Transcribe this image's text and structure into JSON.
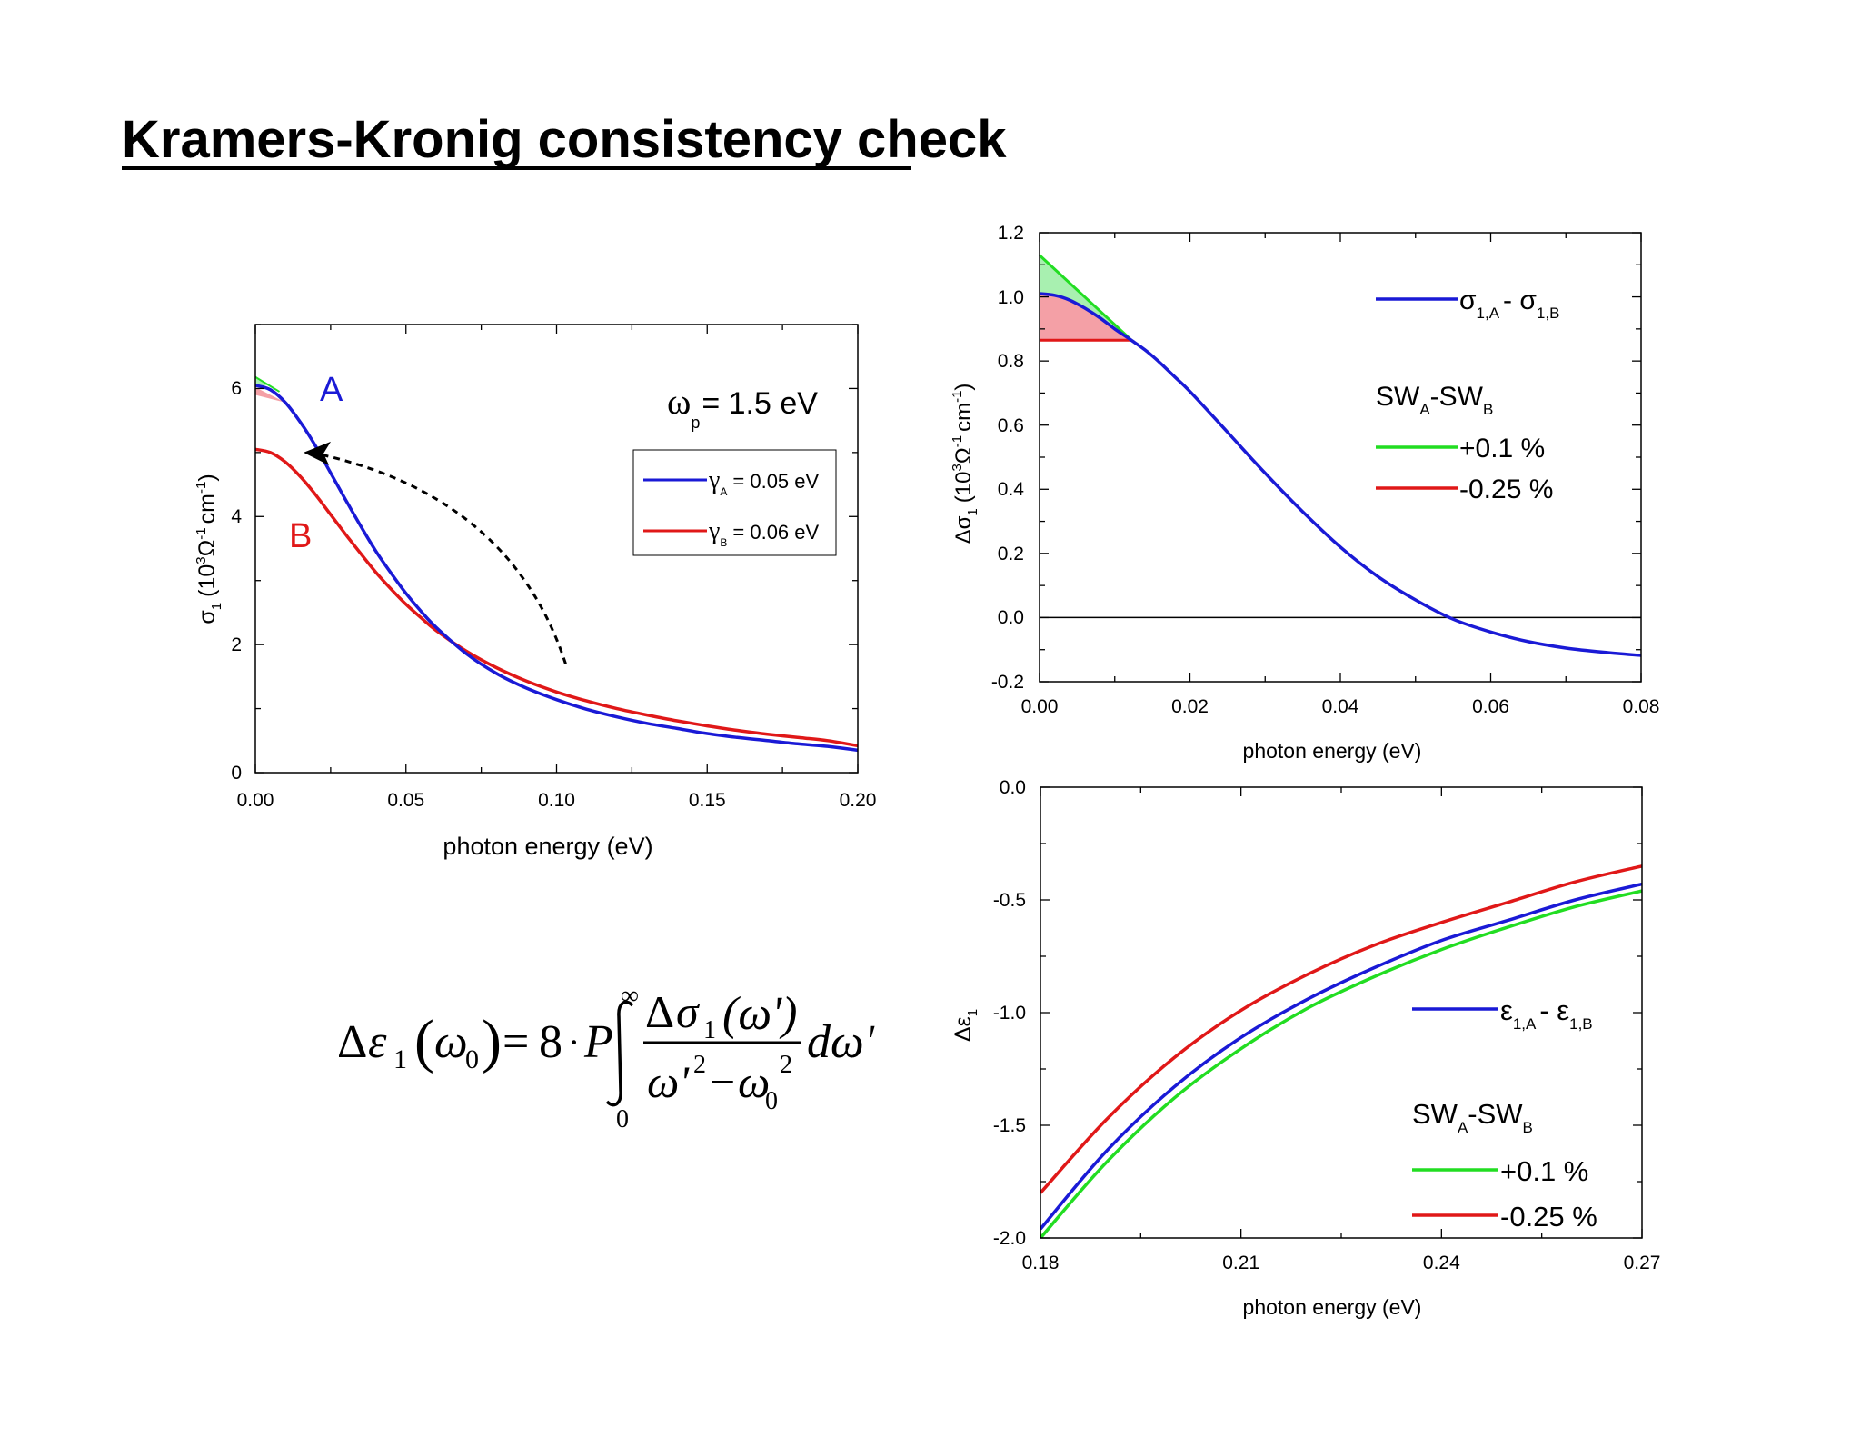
{
  "page": {
    "title": "Kramers-Kronig consistency check"
  },
  "formula": {
    "delta": "Δ",
    "eps": "ε",
    "sub1": "1",
    "omega0": "ω",
    "sub0": "0",
    "equals": "=",
    "eight": "8",
    "dot": "·",
    "P": "P",
    "inf": "∞",
    "lower": "0",
    "num_delta": "Δ",
    "num_sigma": "σ",
    "num_sub": "1",
    "num_arg": "(ω')",
    "den_a": "ω'",
    "den_sup": "2",
    "den_minus": "−",
    "den_b": "ω",
    "den_b_sub": "0",
    "den_b_sup": "2",
    "tail": "dω'"
  },
  "colors": {
    "blue": "#1a1ad6",
    "red": "#e01818",
    "green": "#22dd22",
    "pink": "#f4a0a6",
    "palegreen": "#a8f0b0"
  },
  "chart_data": [
    {
      "type": "line",
      "xlabel": "photon energy (eV)",
      "ylabel": {
        "main": "σ",
        "sub": "1",
        "rest1": "(10",
        "sup3": "3",
        "ohm": "Ω",
        "supm1": "-1",
        "cm": "cm",
        "supm1b": "-1",
        "close": ")"
      },
      "xlim": [
        0,
        0.2
      ],
      "ylim": [
        0,
        7
      ],
      "xticks": [
        "0.00",
        "0.05",
        "0.10",
        "0.15",
        "0.20"
      ],
      "yticks": [
        "0",
        "2",
        "4",
        "6"
      ],
      "labels": {
        "A": "A",
        "B": "B"
      },
      "annotation": {
        "omega": "ω",
        "sub": "p",
        "text": "= 1.5 eV"
      },
      "legend": {
        "position": "top-right",
        "entries": [
          {
            "sym": "γ",
            "sub": "A",
            "text": "= 0.05 eV",
            "color": "blue"
          },
          {
            "sym": "γ",
            "sub": "B",
            "text": "= 0.06 eV",
            "color": "red"
          }
        ]
      },
      "series": [
        {
          "name": "γA = 0.05 eV",
          "color": "blue",
          "x": [
            0,
            0.005,
            0.01,
            0.015,
            0.02,
            0.025,
            0.03,
            0.035,
            0.04,
            0.045,
            0.05,
            0.055,
            0.06,
            0.07,
            0.08,
            0.09,
            0.1,
            0.11,
            0.12,
            0.13,
            0.14,
            0.15,
            0.16,
            0.17,
            0.18,
            0.19,
            0.2
          ],
          "y": [
            6.05,
            5.98,
            5.78,
            5.47,
            5.1,
            4.68,
            4.26,
            3.85,
            3.46,
            3.12,
            2.8,
            2.52,
            2.27,
            1.86,
            1.55,
            1.32,
            1.14,
            0.99,
            0.87,
            0.77,
            0.69,
            0.61,
            0.55,
            0.5,
            0.45,
            0.41,
            0.35
          ]
        },
        {
          "name": "γB = 0.06 eV",
          "color": "red",
          "x": [
            0,
            0.005,
            0.01,
            0.015,
            0.02,
            0.025,
            0.03,
            0.035,
            0.04,
            0.045,
            0.05,
            0.055,
            0.06,
            0.07,
            0.08,
            0.09,
            0.1,
            0.11,
            0.12,
            0.13,
            0.14,
            0.15,
            0.16,
            0.17,
            0.18,
            0.19,
            0.2
          ],
          "y": [
            5.05,
            5.0,
            4.85,
            4.62,
            4.34,
            4.03,
            3.72,
            3.42,
            3.13,
            2.87,
            2.63,
            2.42,
            2.22,
            1.9,
            1.64,
            1.43,
            1.26,
            1.12,
            1.0,
            0.9,
            0.81,
            0.73,
            0.66,
            0.6,
            0.55,
            0.5,
            0.42
          ]
        }
      ],
      "arrow": {
        "from": [
          0.103,
          1.7
        ],
        "ctrl": [
          0.085,
          4.3
        ],
        "to": [
          0.016,
          5.0
        ]
      }
    },
    {
      "type": "line",
      "xlabel": "photon energy (eV)",
      "ylabel": {
        "main": "Δσ",
        "sub": "1",
        "rest1": "(10",
        "sup3": "3",
        "ohm": "Ω",
        "supm1": "-1",
        "cm": "cm",
        "supm1b": "-1",
        "close": ")"
      },
      "xlim": [
        0,
        0.08
      ],
      "ylim": [
        -0.2,
        1.2
      ],
      "xticks": [
        "0.00",
        "0.02",
        "0.04",
        "0.06",
        "0.08"
      ],
      "yticks": [
        "-0.2",
        "0.0",
        "0.2",
        "0.4",
        "0.6",
        "0.8",
        "1.0",
        "1.2"
      ],
      "legend": {
        "position": "top-right",
        "main": {
          "a": "σ",
          "asub": "1,A",
          "dash": "- ",
          "b": "σ",
          "bsub": "1,B",
          "color": "blue"
        },
        "sw": {
          "a": "SW",
          "asub": "A",
          "b": "-SW",
          "bsub": "B"
        },
        "entries": [
          {
            "text": "+0.1 %",
            "color": "green"
          },
          {
            "text": "-0.25 %",
            "color": "red"
          }
        ]
      },
      "series": [
        {
          "name": "σ1,A - σ1,B",
          "color": "blue",
          "x": [
            0,
            0.002,
            0.004,
            0.006,
            0.008,
            0.01,
            0.012,
            0.014,
            0.016,
            0.018,
            0.02,
            0.025,
            0.03,
            0.035,
            0.04,
            0.045,
            0.05,
            0.055,
            0.06,
            0.065,
            0.07,
            0.075,
            0.08
          ],
          "y": [
            1.01,
            1.005,
            0.99,
            0.965,
            0.935,
            0.9,
            0.868,
            0.835,
            0.795,
            0.75,
            0.705,
            0.578,
            0.45,
            0.33,
            0.22,
            0.128,
            0.055,
            -0.005,
            -0.045,
            -0.075,
            -0.095,
            -0.108,
            -0.118
          ]
        },
        {
          "name": "+0.1 %",
          "color": "green",
          "x": [
            0,
            0.012
          ],
          "y": [
            1.13,
            0.87
          ]
        },
        {
          "name": "-0.25 %",
          "color": "red",
          "x": [
            0,
            0.0123
          ],
          "y": [
            0.865,
            0.865
          ]
        }
      ],
      "zero_line": 0
    },
    {
      "type": "line",
      "xlabel": "photon energy (eV)",
      "ylabel": {
        "main": "Δε",
        "sub": "1"
      },
      "xlim": [
        0.18,
        0.27
      ],
      "ylim": [
        -2.0,
        0.0
      ],
      "xticks": [
        "0.18",
        "0.21",
        "0.24",
        "0.27"
      ],
      "yticks": [
        "0.0",
        "-0.5",
        "-1.0",
        "-1.5",
        "-2.0"
      ],
      "legend": {
        "position": "right",
        "main": {
          "a": "ε",
          "asub": "1,A",
          "dash": "- ",
          "b": "ε",
          "bsub": "1,B",
          "color": "blue"
        },
        "sw": {
          "a": "SW",
          "asub": "A",
          "b": "-SW",
          "bsub": "B"
        },
        "entries": [
          {
            "text": "+0.1 %",
            "color": "green"
          },
          {
            "text": "-0.25 %",
            "color": "red"
          }
        ]
      },
      "series": [
        {
          "name": "ε1,A - ε1,B",
          "color": "blue",
          "x": [
            0.18,
            0.19,
            0.2,
            0.21,
            0.22,
            0.23,
            0.24,
            0.25,
            0.26,
            0.27
          ],
          "y": [
            -1.96,
            -1.61,
            -1.33,
            -1.11,
            -0.94,
            -0.8,
            -0.68,
            -0.59,
            -0.5,
            -0.43
          ]
        },
        {
          "name": "+0.1 %",
          "color": "green",
          "x": [
            0.18,
            0.19,
            0.2,
            0.21,
            0.22,
            0.23,
            0.24,
            0.25,
            0.26,
            0.27
          ],
          "y": [
            -2.0,
            -1.66,
            -1.38,
            -1.16,
            -0.98,
            -0.84,
            -0.72,
            -0.62,
            -0.53,
            -0.46
          ]
        },
        {
          "name": "-0.25 %",
          "color": "red",
          "x": [
            0.18,
            0.19,
            0.2,
            0.21,
            0.22,
            0.23,
            0.24,
            0.25,
            0.26,
            0.27
          ],
          "y": [
            -1.8,
            -1.47,
            -1.2,
            -0.99,
            -0.83,
            -0.7,
            -0.6,
            -0.51,
            -0.42,
            -0.35
          ]
        }
      ]
    }
  ]
}
